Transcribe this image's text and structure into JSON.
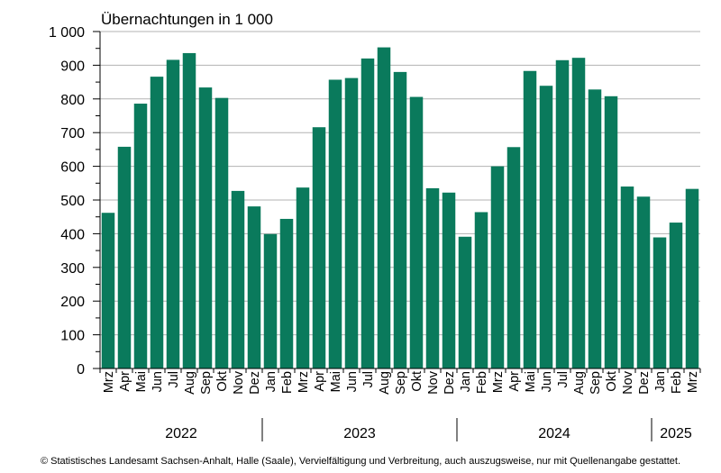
{
  "chart_data": {
    "type": "bar",
    "ylabel": "Übernachtungen in 1 000",
    "ylim": [
      0,
      1000
    ],
    "yticks": [
      0,
      100,
      200,
      300,
      400,
      500,
      600,
      700,
      800,
      900,
      1000
    ],
    "ytick_labels": [
      "0",
      "100",
      "200",
      "300",
      "400",
      "500",
      "600",
      "700",
      "800",
      "900",
      "1 000"
    ],
    "grid": true,
    "bar_color": "#0a7a5c",
    "categories": [
      "Mrz",
      "Apr",
      "Mai",
      "Jun",
      "Jul",
      "Aug",
      "Sep",
      "Okt",
      "Nov",
      "Dez",
      "Jan",
      "Feb",
      "Mrz",
      "Apr",
      "Mai",
      "Jun",
      "Jul",
      "Aug",
      "Sep",
      "Okt",
      "Nov",
      "Dez",
      "Jan",
      "Feb",
      "Mrz",
      "Apr",
      "Mai",
      "Jun",
      "Jul",
      "Aug",
      "Sep",
      "Okt",
      "Nov",
      "Dez",
      "Jan",
      "Feb",
      "Mrz"
    ],
    "values": [
      462,
      658,
      786,
      866,
      916,
      936,
      834,
      803,
      527,
      481,
      399,
      444,
      537,
      716,
      857,
      862,
      920,
      953,
      880,
      806,
      535,
      522,
      391,
      464,
      600,
      657,
      883,
      839,
      915,
      922,
      828,
      808,
      540,
      510,
      389,
      433,
      533
    ],
    "years": [
      {
        "label": "2022",
        "months": 10
      },
      {
        "label": "2023",
        "months": 12
      },
      {
        "label": "2024",
        "months": 12
      },
      {
        "label": "2025",
        "months": 3
      }
    ]
  },
  "footer": "© Statistisches Landesamt Sachsen-Anhalt, Halle (Saale), Vervielfältigung und Verbreitung, auch auszugsweise, nur mit Quellenangabe gestattet."
}
